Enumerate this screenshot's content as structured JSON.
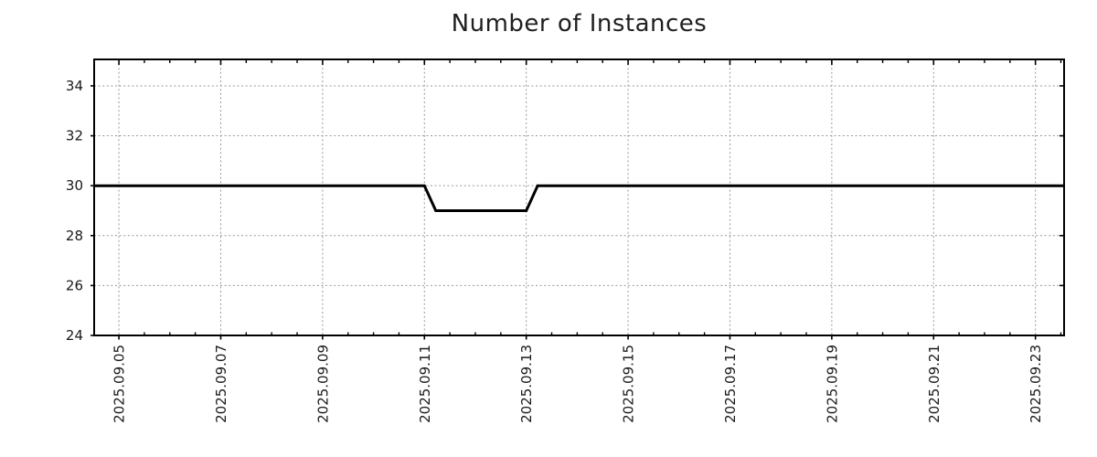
{
  "chart_data": {
    "type": "line",
    "title": "Number of Instances",
    "x_axis": {
      "label": "",
      "epoch": "2025-09-05T00:00",
      "range": [
        "2025-09-04T12:20",
        "2025-09-23T13:30"
      ],
      "major_ticks_days": [
        0,
        2,
        4,
        6,
        8,
        10,
        12,
        14,
        16,
        18
      ],
      "tick_labels": [
        "2025.09.05",
        "2025.09.07",
        "2025.09.09",
        "2025.09.11",
        "2025.09.13",
        "2025.09.15",
        "2025.09.17",
        "2025.09.19",
        "2025.09.21",
        "2025.09.23"
      ],
      "minor_tick_interval_days": 0.5
    },
    "y_axis": {
      "label": "",
      "range": [
        24,
        35.06
      ],
      "ticks": [
        24,
        26,
        28,
        30,
        32,
        34
      ],
      "tick_labels": [
        "24",
        "26",
        "28",
        "30",
        "32",
        "34"
      ]
    },
    "grid": {
      "show": true,
      "style": "dotted"
    },
    "legend": {
      "show": false
    },
    "series": [
      {
        "name": "Number of Instances",
        "color": "#000000",
        "line_width": 3,
        "points": [
          {
            "date": "2025-09-04T12:20",
            "value": 30
          },
          {
            "date": "2025-09-11T00:00",
            "value": 30
          },
          {
            "date": "2025-09-11T05:20",
            "value": 29
          },
          {
            "date": "2025-09-13T00:00",
            "value": 29
          },
          {
            "date": "2025-09-13T05:20",
            "value": 30
          },
          {
            "date": "2025-09-23T13:30",
            "value": 30
          }
        ]
      }
    ],
    "colors": {
      "grid": "#999999",
      "axis": "#000000",
      "text": "#1a1a1a",
      "background": "#ffffff"
    }
  }
}
